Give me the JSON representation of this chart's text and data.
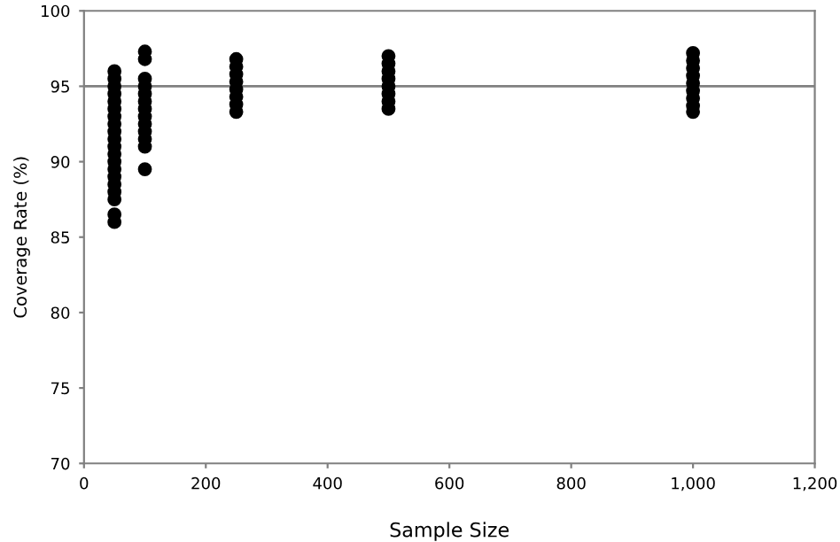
{
  "chart_data": {
    "type": "scatter",
    "xlabel": "Sample Size",
    "ylabel": "Coverage Rate (%)",
    "x": [
      50,
      50,
      50,
      50,
      50,
      50,
      50,
      50,
      50,
      50,
      50,
      50,
      50,
      50,
      50,
      50,
      50,
      50,
      50,
      50,
      100,
      100,
      100,
      100,
      100,
      100,
      100,
      100,
      100,
      100,
      100,
      100,
      100,
      250,
      250,
      250,
      250,
      250,
      250,
      250,
      250,
      500,
      500,
      500,
      500,
      500,
      500,
      500,
      500,
      1000,
      1000,
      1000,
      1000,
      1000,
      1000,
      1000,
      1000,
      1000
    ],
    "series": [
      {
        "color": "#000000",
        "values": [
          96.0,
          95.5,
          95.0,
          94.5,
          94.0,
          93.5,
          93.0,
          92.5,
          92.0,
          91.5,
          91.0,
          90.5,
          90.0,
          89.5,
          89.0,
          88.5,
          88.0,
          87.5,
          86.5,
          86.0,
          97.3,
          96.8,
          95.5,
          95.0,
          94.5,
          94.0,
          93.5,
          93.0,
          92.5,
          92.0,
          91.5,
          91.0,
          89.5,
          96.8,
          96.3,
          95.8,
          95.3,
          94.8,
          94.3,
          93.8,
          93.3,
          97.0,
          96.5,
          96.0,
          95.5,
          95.0,
          94.5,
          94.0,
          93.5,
          97.2,
          96.7,
          96.2,
          95.7,
          95.2,
          94.7,
          94.2,
          93.7,
          93.3
        ]
      }
    ],
    "xlim": [
      0,
      1200
    ],
    "xticks": [
      0,
      200,
      400,
      600,
      800,
      {
        "value": 1000,
        "label": "1,000"
      },
      {
        "value": 1200,
        "label": "1,200"
      }
    ],
    "ylim": [
      70,
      100
    ],
    "yticks": [
      70,
      75,
      80,
      85,
      90,
      95,
      100
    ],
    "ref_lines": [
      {
        "axis": "y",
        "value": 95,
        "color": "#808080"
      }
    ],
    "marker": "circle",
    "grid": false,
    "legend": false
  }
}
